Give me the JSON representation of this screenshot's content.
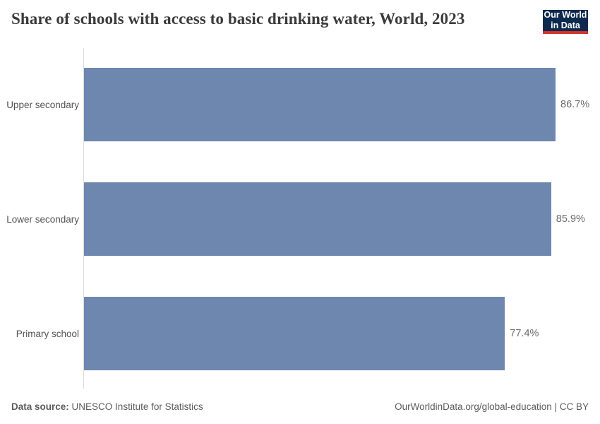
{
  "header": {
    "title": "Share of schools with access to basic drinking water, World, 2023",
    "logo": {
      "line1": "Our World",
      "line2": "in Data",
      "bg_color": "#0d2a4e",
      "accent_color": "#d1342b"
    }
  },
  "chart_data": {
    "type": "bar",
    "orientation": "horizontal",
    "title": "Share of schools with access to basic drinking water, World, 2023",
    "categories": [
      "Upper secondary",
      "Lower secondary",
      "Primary school"
    ],
    "values": [
      86.7,
      85.9,
      77.4
    ],
    "value_labels": [
      "86.7%",
      "85.9%",
      "77.4%"
    ],
    "unit": "%",
    "xlabel": "",
    "ylabel": "",
    "xlim": [
      0,
      86.7
    ],
    "grid": false,
    "legend": false,
    "bar_color": "#6d87ae",
    "axis_line_color": "#dcdcdc"
  },
  "footer": {
    "datasource_label": "Data source:",
    "datasource_value": "UNESCO Institute for Statistics",
    "license": "OurWorldinData.org/global-education | CC BY"
  }
}
